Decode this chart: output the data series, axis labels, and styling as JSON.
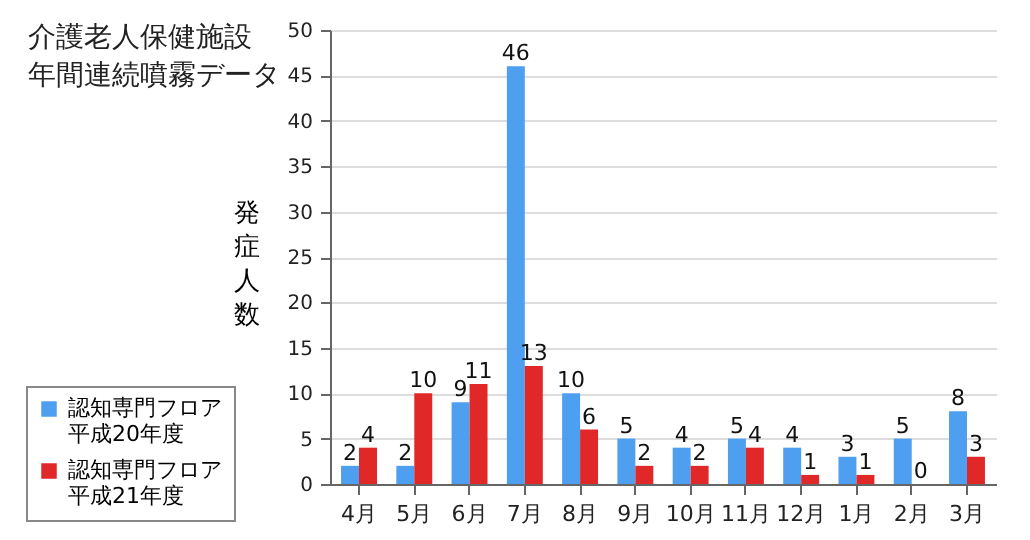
{
  "chart_data": {
    "type": "bar",
    "title": "介護老人保健施設",
    "subtitle": "年間連続噴霧データ",
    "ylabel": "発症人数",
    "categories": [
      "4月",
      "5月",
      "6月",
      "7月",
      "8月",
      "9月",
      "10月",
      "11月",
      "12月",
      "1月",
      "2月",
      "3月"
    ],
    "series": [
      {
        "name": "認知専門フロア平成20年度",
        "color": "#4f9ff0",
        "values": [
          2,
          2,
          9,
          46,
          10,
          5,
          4,
          5,
          4,
          3,
          5,
          8
        ]
      },
      {
        "name": "認知専門フロア平成21年度",
        "color": "#e02828",
        "values": [
          4,
          10,
          11,
          13,
          6,
          2,
          2,
          4,
          1,
          1,
          0,
          3
        ]
      }
    ],
    "ylim": [
      0,
      50
    ],
    "yticks": [
      0,
      5,
      10,
      15,
      20,
      25,
      30,
      35,
      40,
      45,
      50
    ],
    "grid": "y",
    "legend": "left",
    "data_labels": true
  }
}
